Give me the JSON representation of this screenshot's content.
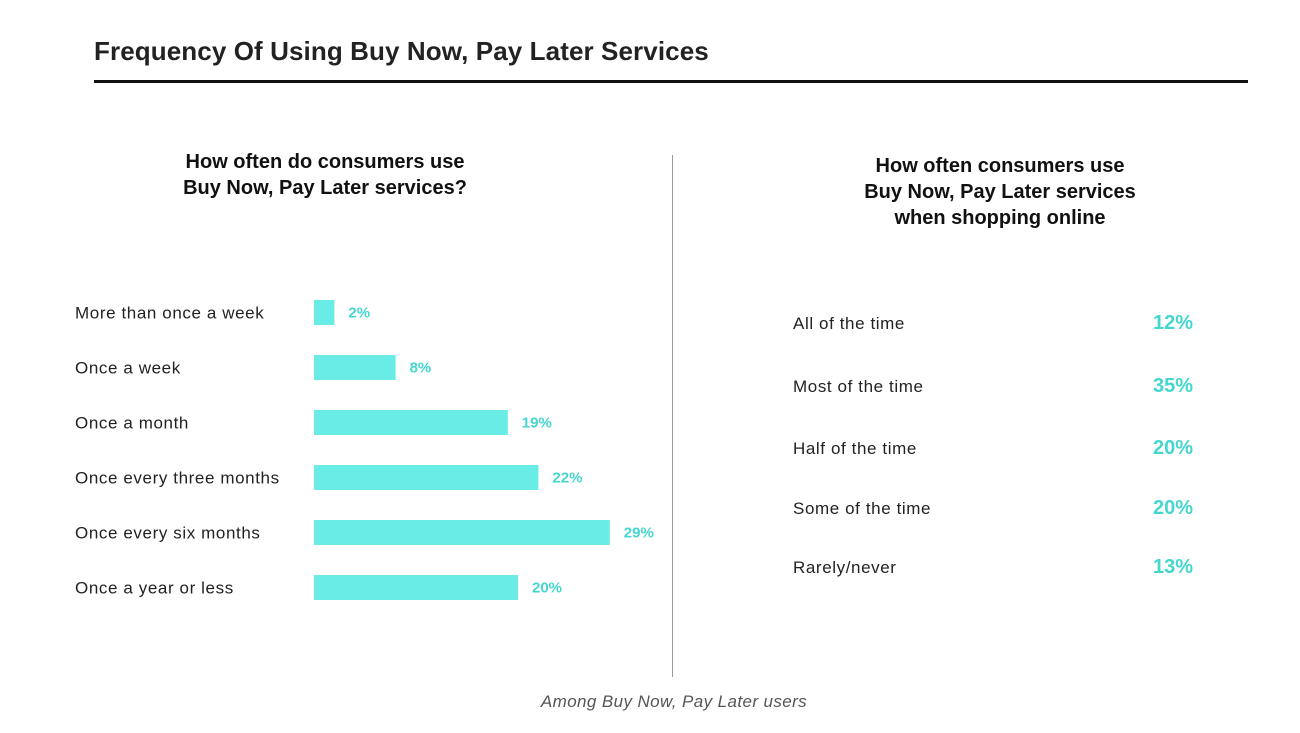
{
  "page": {
    "title": "Frequency Of Using Buy Now, Pay Later Services",
    "footnote": "Among Buy Now, Pay Later users"
  },
  "colors": {
    "bar": "#6aece6",
    "value_text": "#45d6cf",
    "title_rule": "#111111",
    "divider": "#9a9a9a"
  },
  "chart_data": [
    {
      "type": "bar",
      "orientation": "horizontal",
      "title_lines": [
        "How often do consumers use",
        "Buy Now, Pay Later services?"
      ],
      "categories": [
        "More than once a week",
        "Once a week",
        "Once a month",
        "Once every three months",
        "Once every six months",
        "Once a year or less"
      ],
      "values": [
        2,
        8,
        19,
        22,
        29,
        20
      ],
      "value_labels": [
        "2%",
        "8%",
        "19%",
        "22%",
        "29%",
        "20%"
      ],
      "unit": "%",
      "grid": false,
      "axes_visible": false
    },
    {
      "type": "table",
      "title_lines": [
        "How often consumers use",
        "Buy Now, Pay Later services",
        "when shopping online"
      ],
      "rows": [
        {
          "label": "All of the time",
          "value": 12,
          "value_label": "12%"
        },
        {
          "label": "Most of the time",
          "value": 35,
          "value_label": "35%"
        },
        {
          "label": "Half of the time",
          "value": 20,
          "value_label": "20%"
        },
        {
          "label": "Some of the time",
          "value": 20,
          "value_label": "20%"
        },
        {
          "label": "Rarely/never",
          "value": 13,
          "value_label": "13%"
        }
      ]
    }
  ]
}
